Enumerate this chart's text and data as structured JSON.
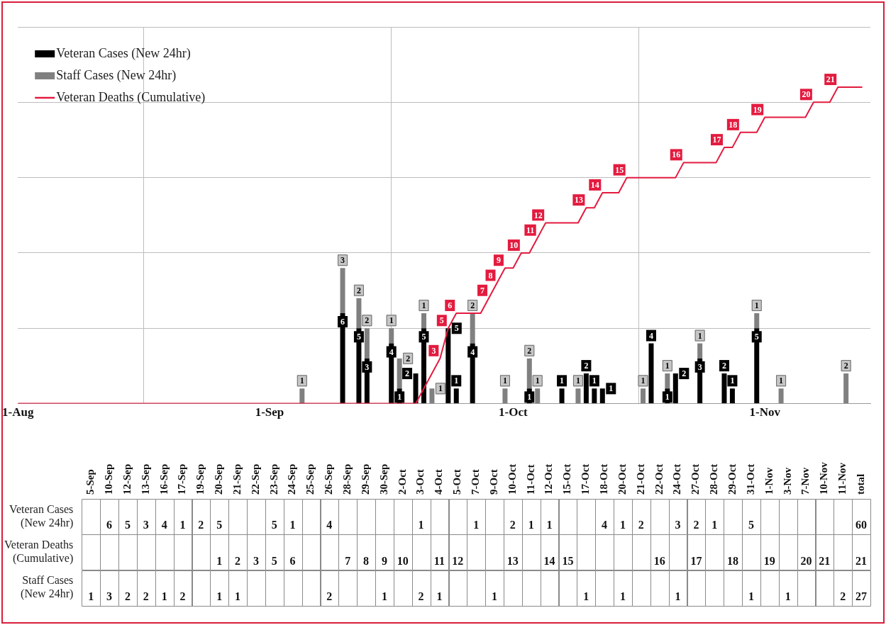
{
  "chart_data": [
    {
      "type": "bar",
      "stacked": true,
      "grid": true,
      "legend": "top left",
      "tick_labels": "x",
      "marker": "none",
      "x": [
        "--09-05",
        "--09-10",
        "--09-12",
        "--09-13",
        "--09-16",
        "--09-17",
        "--09-19",
        "--09-20",
        "--09-21",
        "--09-23",
        "--09-24",
        "--09-26",
        "--09-30",
        "--10-03",
        "--10-04",
        "--10-07",
        "--10-09",
        "--10-10",
        "--10-11",
        "--10-12",
        "--10-17",
        "--10-18",
        "--10-20",
        "--10-21",
        "--10-24",
        "--10-27",
        "--10-28",
        "--10-31",
        "--11-03",
        "--11-11"
      ],
      "xlim": [
        "--08-01",
        "--11-14"
      ],
      "xticks": [
        {
          "value": "--08-01",
          "label": "1-Aug"
        },
        {
          "value": "--09-01",
          "label": "1-Sep"
        },
        {
          "value": "--10-01",
          "label": "1-Oct"
        },
        {
          "value": "--11-01",
          "label": "1-Nov"
        }
      ],
      "ylim": [
        0,
        25
      ],
      "yticks": [
        {
          "value": 0,
          "label": null
        },
        {
          "value": 5,
          "label": null
        },
        {
          "value": 10,
          "label": null
        },
        {
          "value": 15,
          "label": null
        },
        {
          "value": 20,
          "label": null
        },
        {
          "value": 25,
          "label": null
        }
      ],
      "series": [
        {
          "name": "Veteran Cases (New 24hr)",
          "color": "#000000",
          "values": [
            null,
            6,
            5,
            3,
            4,
            1,
            2,
            5,
            null,
            5,
            1,
            4,
            null,
            1,
            null,
            1,
            null,
            2,
            1,
            1,
            null,
            4,
            1,
            2,
            3,
            2,
            1,
            5,
            null,
            null
          ],
          "value_labels": [
            null,
            "6",
            "5",
            "3",
            "4",
            "1",
            "2",
            "5",
            null,
            "5",
            "1",
            "4",
            null,
            "1",
            null,
            "1",
            null,
            "2",
            "1",
            "1",
            null,
            "4",
            "1",
            "2",
            "3",
            "2",
            "1",
            "5",
            null,
            null
          ]
        },
        {
          "name": "Staff Cases (New 24hr)",
          "color": "#808080",
          "values": [
            1,
            3,
            2,
            2,
            1,
            2,
            null,
            1,
            1,
            null,
            null,
            2,
            1,
            2,
            1,
            null,
            1,
            null,
            null,
            null,
            1,
            null,
            1,
            null,
            1,
            null,
            null,
            1,
            1,
            2
          ],
          "value_labels": [
            "1",
            "3",
            "2",
            "2",
            "1",
            "2",
            null,
            "1",
            "1",
            null,
            null,
            "2",
            "1",
            "2",
            "1",
            null,
            "1",
            null,
            null,
            null,
            "1",
            null,
            "1",
            null,
            "1",
            null,
            null,
            "1",
            "1",
            "2"
          ]
        },
        {
          "name": "Veteran Deaths (Cumulative)",
          "type": "line",
          "color": "#e31b3f",
          "x": [
            "--08-01",
            "--09-19",
            "--09-20",
            "--09-21",
            "--09-22",
            "--09-23",
            "--09-24",
            "--09-27",
            "--09-28",
            "--09-29",
            "--09-30",
            "--10-01",
            "--10-02",
            "--10-03",
            "--10-04",
            "--10-05",
            "--10-09",
            "--10-10",
            "--10-11",
            "--10-12",
            "--10-14",
            "--10-15",
            "--10-21",
            "--10-22",
            "--10-26",
            "--10-27",
            "--10-28",
            "--10-29",
            "--10-31",
            "--11-01",
            "--11-06",
            "--11-07",
            "--11-09",
            "--11-10",
            "--11-13"
          ],
          "values": [
            0,
            0,
            1,
            2,
            3,
            5,
            6,
            6,
            7,
            8,
            9,
            9,
            10,
            10,
            11,
            12,
            12,
            13,
            13,
            14,
            14,
            15,
            15,
            16,
            16,
            17,
            17,
            18,
            18,
            19,
            19,
            20,
            20,
            21,
            21
          ],
          "value_labels": [
            null,
            null,
            null,
            null,
            "3",
            "5",
            "6",
            null,
            "7",
            "8",
            "9",
            null,
            "10",
            null,
            "11",
            "12",
            null,
            "13",
            null,
            "14",
            null,
            "15",
            null,
            "16",
            null,
            "17",
            null,
            "18",
            null,
            "19",
            null,
            "20",
            null,
            "21",
            null
          ]
        }
      ]
    },
    {
      "type": "heatmap",
      "data_labels": true,
      "categories": [
        "5-Sep",
        "10-Sep",
        "12-Sep",
        "13-Sep",
        "16-Sep",
        "17-Sep",
        "19-Sep",
        "20-Sep",
        "21-Sep",
        "22-Sep",
        "23-Sep",
        "24-Sep",
        "25-Sep",
        "26-Sep",
        "28-Sep",
        "29-Sep",
        "30-Sep",
        "2-Oct",
        "3-Oct",
        "4-Oct",
        "5-Oct",
        "7-Oct",
        "9-Oct",
        "10-Oct",
        "11-Oct",
        "12-Oct",
        "15-Oct",
        "17-Oct",
        "18-Oct",
        "20-Oct",
        "21-Oct",
        "22-Oct",
        "24-Oct",
        "27-Oct",
        "28-Oct",
        "29-Oct",
        "31-Oct",
        "1-Nov",
        "3-Nov",
        "7-Nov",
        "10-Nov",
        "11-Nov",
        "total"
      ],
      "y_categories": [
        "Veteran Cases (New 24hr)",
        "Veteran Deaths (Cumulative)",
        "Staff Cases (New 24hr)"
      ],
      "cells": [
        [
          null,
          6,
          5,
          3,
          4,
          1,
          2,
          5,
          null,
          null,
          5,
          1,
          null,
          4,
          null,
          null,
          null,
          null,
          1,
          null,
          null,
          1,
          null,
          2,
          1,
          1,
          null,
          null,
          4,
          1,
          2,
          null,
          3,
          2,
          1,
          null,
          5,
          null,
          null,
          null,
          null,
          null,
          60
        ],
        [
          null,
          null,
          null,
          null,
          null,
          null,
          null,
          1,
          2,
          3,
          5,
          6,
          null,
          null,
          7,
          8,
          9,
          10,
          null,
          11,
          12,
          null,
          null,
          13,
          null,
          14,
          15,
          null,
          null,
          null,
          null,
          16,
          null,
          17,
          null,
          18,
          null,
          19,
          null,
          20,
          21,
          null,
          21
        ],
        [
          1,
          3,
          2,
          2,
          1,
          2,
          null,
          1,
          1,
          null,
          null,
          null,
          null,
          2,
          null,
          null,
          1,
          null,
          2,
          1,
          null,
          null,
          1,
          null,
          null,
          null,
          null,
          1,
          null,
          1,
          null,
          null,
          1,
          null,
          null,
          null,
          1,
          null,
          1,
          null,
          null,
          2,
          27
        ]
      ]
    }
  ]
}
